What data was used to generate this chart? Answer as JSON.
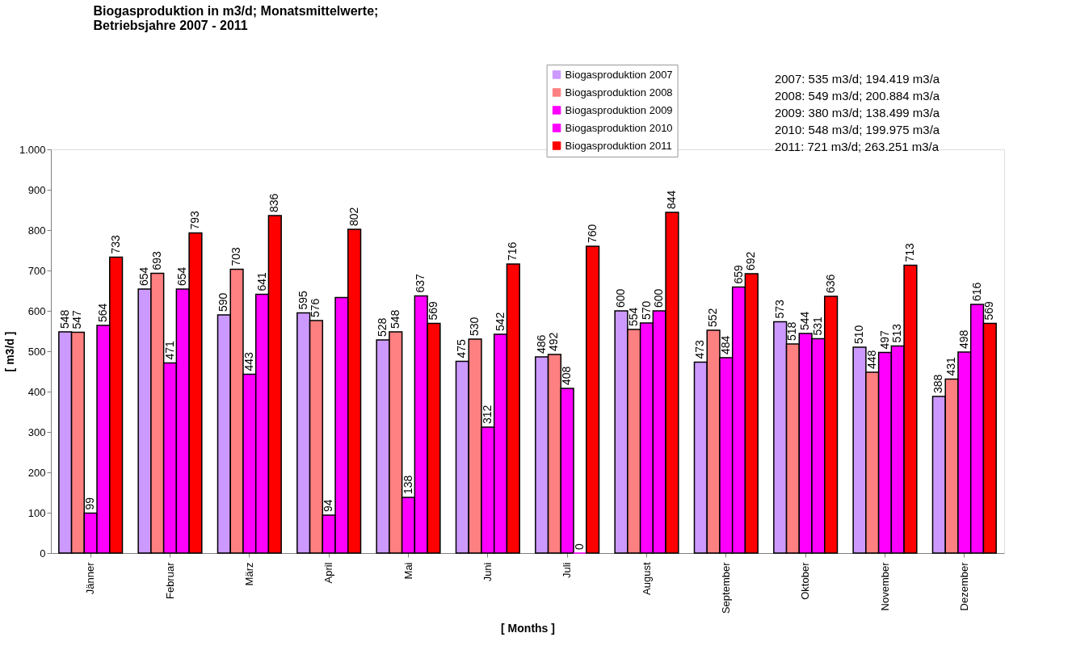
{
  "chart_data": {
    "type": "bar",
    "title": [
      "Biogasproduktion in m3/d; Monatsmittelwerte;",
      "Betriebsjahre 2007 - 2011"
    ],
    "xlabel": "[ Months ]",
    "ylabel": "[ m3/d ]",
    "categories": [
      "Jänner",
      "Februar",
      "März",
      "April",
      "Mai",
      "Juni",
      "Juli",
      "August",
      "September",
      "Oktober",
      "November",
      "Dezember"
    ],
    "series": [
      {
        "name": "Biogasproduktion 2007",
        "color": "#cc99ff",
        "values": [
          548,
          654,
          590,
          595,
          528,
          475,
          486,
          600,
          473,
          573,
          510,
          388
        ],
        "value_labels": [
          "548",
          "654",
          "590",
          "595",
          "528",
          "475",
          "486",
          "600",
          "473",
          "573",
          "510",
          "388"
        ]
      },
      {
        "name": "Biogasproduktion 2008",
        "color": "#ff8080",
        "values": [
          547,
          693,
          703,
          576,
          548,
          530,
          492,
          554,
          552,
          518,
          448,
          431
        ],
        "value_labels": [
          "547",
          "693",
          "703",
          "576",
          "548",
          "530",
          "492",
          "554",
          "552",
          "518",
          "448",
          "431"
        ]
      },
      {
        "name": "Biogasproduktion 2009",
        "color": "#ff00ff",
        "values": [
          99,
          471,
          443,
          94,
          138,
          312,
          408,
          570,
          484,
          544,
          497,
          498
        ],
        "value_labels": [
          "99",
          "471",
          "443",
          "94",
          "138",
          "312",
          "408",
          "570",
          "484",
          "544",
          "497",
          "498"
        ]
      },
      {
        "name": "Biogasproduktion 2010",
        "color": "#ff00ff",
        "values": [
          564,
          654,
          641,
          633,
          637,
          542,
          0,
          600,
          659,
          531,
          513,
          616
        ],
        "value_labels": [
          "564",
          "654",
          "641",
          null,
          "637",
          "542",
          "0",
          "600",
          "659",
          "531",
          "513",
          "616"
        ]
      },
      {
        "name": "Biogasproduktion 2011",
        "color": "#ff0000",
        "values": [
          733,
          793,
          836,
          802,
          569,
          716,
          760,
          844,
          692,
          636,
          713,
          569
        ],
        "value_labels": [
          "733",
          "793",
          "836",
          "802",
          "569",
          "716",
          "760",
          "844",
          "692",
          "636",
          "713",
          "569"
        ]
      }
    ],
    "ylim": [
      0,
      1000
    ],
    "yticks": [
      0,
      100,
      200,
      300,
      400,
      500,
      600,
      700,
      800,
      900,
      {
        "value": 1000,
        "label": "1.000"
      }
    ],
    "grid": false,
    "legend": "top right",
    "annotations": [
      "2007: 535 m3/d; 194.419 m3/a",
      "2008: 549 m3/d; 200.884 m3/a",
      "2009: 380 m3/d; 138.499 m3/a",
      "2010: 548 m3/d; 199.975 m3/a",
      "2011: 721 m3/d; 263.251 m3/a"
    ]
  }
}
